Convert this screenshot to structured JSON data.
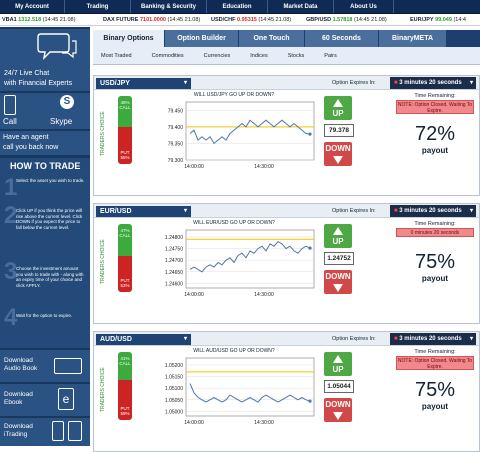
{
  "nav": [
    "My Account",
    "Trading",
    "Banking & Security",
    "Education",
    "Market Data",
    "About Us"
  ],
  "ticker": [
    {
      "name": "VBA1",
      "price": "1312.518",
      "time": "(14:45 21.08)",
      "color": "g"
    },
    {
      "name": "DAX FUTURE",
      "price": "7101.0000",
      "time": "(14:45 21.08)",
      "color": "r"
    },
    {
      "name": "USD/CHF",
      "price": "0.95315",
      "time": "(14:45 21.08)",
      "color": "r"
    },
    {
      "name": "GBP/USD",
      "price": "1.57818",
      "time": "(14:45 21.08)",
      "color": "g"
    },
    {
      "name": "EUR/JPY",
      "price": "99.049",
      "time": "(14:4",
      "color": "g"
    }
  ],
  "sidebar": {
    "live_chat": "24/7 Live Chat",
    "live_chat_sub": "with Financial Experts",
    "call": "Call",
    "skype": "Skype",
    "agent": "Have an agent",
    "agent_sub": "call you back now",
    "how_to_trade": "HOW TO TRADE",
    "steps": [
      "Select the asset you wish to trade.",
      "Click UP if you think the price will rise above the current level. Click DOWN if you expect the price to fall below the current level.",
      "Choose the investment amount you wish to trade with - along with an expiry time of your choice and click APPLY.",
      "Wait for the option to expire."
    ],
    "download_audio": "Download Audio Book",
    "download_ebook": "Download Ebook",
    "download_itrading": "Download iTrading"
  },
  "tabs": [
    "Binary Options",
    "Option Builder",
    "One Touch",
    "60 Seconds",
    "BinaryMETA"
  ],
  "subtabs": [
    "Most Traded",
    "Commodities",
    "Currencies",
    "Indices",
    "Stocks",
    "Pairs"
  ],
  "labels": {
    "option_expires": "Option Expires In:",
    "time_remaining": "Time Remaining:",
    "payout": "payout",
    "up": "UP",
    "down": "DOWN",
    "traders_choice": "TRADERS CHOICE",
    "put": "PUT",
    "call": "CALL"
  },
  "assets": [
    {
      "name": "USD/JPY",
      "expiry": "3 minutes 20 seconds",
      "question": "WILL USD/JPY GO UP OR DOWN?",
      "status": "NOTE: Option Closed. Waiting To Expire.",
      "price": "79.378",
      "payout": "72%",
      "call_pct": "45%",
      "put_pct": "55%",
      "call_frac": 0.45,
      "chart_data": {
        "type": "line",
        "yticks": [
          "79.450",
          "79.400",
          "79.350",
          "79.300"
        ],
        "ylim": [
          79.3,
          79.475
        ],
        "xticks": [
          "14:00:00",
          "14:30:00"
        ],
        "y": [
          79.38,
          79.39,
          79.36,
          79.37,
          79.36,
          79.37,
          79.35,
          79.36,
          79.37,
          79.36,
          79.38,
          79.39,
          79.4,
          79.41,
          79.4,
          79.42,
          79.41,
          79.4,
          79.41,
          79.42,
          79.41,
          79.4,
          79.41,
          79.42,
          79.41,
          79.4,
          79.41,
          79.4,
          79.39,
          79.38,
          79.378
        ],
        "ref": 79.4
      }
    },
    {
      "name": "EUR/USD",
      "expiry": "3 minutes 20 seconds",
      "question": "WILL EUR/USD GO UP OR DOWN?",
      "status": "0 minutes 20 seconds",
      "price": "1.24752",
      "payout": "75%",
      "call_pct": "47%",
      "put_pct": "53%",
      "call_frac": 0.47,
      "chart_data": {
        "type": "line",
        "yticks": [
          "1.24800",
          "1.24750",
          "1.24700",
          "1.24650",
          "1.24600"
        ],
        "ylim": [
          1.2458,
          1.2483
        ],
        "xticks": [
          "14:00:00",
          "14:30:00"
        ],
        "y": [
          1.2466,
          1.2467,
          1.2466,
          1.2465,
          1.2467,
          1.2468,
          1.2467,
          1.2469,
          1.2468,
          1.247,
          1.2471,
          1.2469,
          1.2472,
          1.2473,
          1.2471,
          1.2474,
          1.2473,
          1.2475,
          1.2476,
          1.2474,
          1.2477,
          1.2476,
          1.2478,
          1.2477,
          1.2475,
          1.2476,
          1.2474,
          1.2473,
          1.2475,
          1.2476,
          1.24752
        ],
        "ref": 1.2479
      }
    },
    {
      "name": "AUD/USD",
      "expiry": "3 minutes 20 seconds",
      "question": "WILL AUD/USD GO UP OR DOWN?",
      "status": "NOTE: Option Closed. Waiting To Expire.",
      "price": "1.05044",
      "payout": "75%",
      "call_pct": "41%",
      "put_pct": "59%",
      "call_frac": 0.41,
      "chart_data": {
        "type": "line",
        "yticks": [
          "1.05200",
          "1.05150",
          "1.05100",
          "1.05050",
          "1.05000"
        ],
        "ylim": [
          1.0498,
          1.0523
        ],
        "xticks": [
          "14:00:00",
          "14:30:00"
        ],
        "y": [
          1.0512,
          1.0508,
          1.0506,
          1.0505,
          1.0504,
          1.0505,
          1.0506,
          1.0505,
          1.0504,
          1.0505,
          1.0507,
          1.0506,
          1.0505,
          1.0504,
          1.0505,
          1.0506,
          1.0505,
          1.0504,
          1.0506,
          1.0507,
          1.0506,
          1.0505,
          1.0504,
          1.0505,
          1.0506,
          1.0507,
          1.0506,
          1.0505,
          1.0506,
          1.0505,
          1.05044
        ],
        "ref": 1.0517
      }
    }
  ]
}
